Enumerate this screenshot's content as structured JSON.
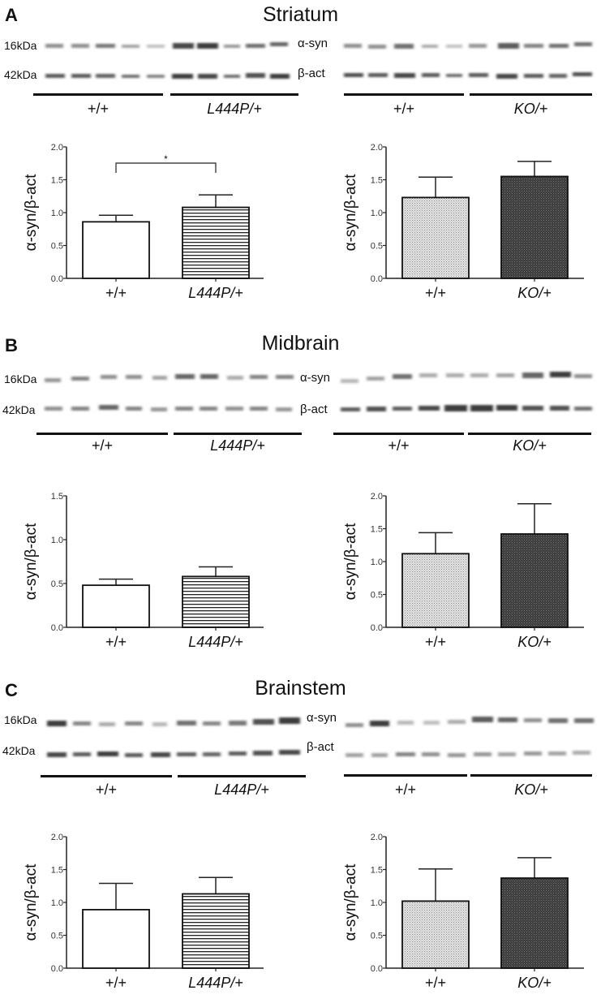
{
  "figure": {
    "panels": [
      {
        "letter": "A",
        "title": "Striatum",
        "mw_labels": [
          "16kDa",
          "42kDa"
        ],
        "band_labels": [
          "α-syn",
          "β-act"
        ],
        "blot_groups_left": [
          "+/+",
          "L444P/+"
        ],
        "blot_groups_right": [
          "+/+",
          "KO/+"
        ]
      },
      {
        "letter": "B",
        "title": "Midbrain",
        "mw_labels": [
          "16kDa",
          "42kDa"
        ],
        "band_labels": [
          "α-syn",
          "β-act"
        ],
        "blot_groups_left": [
          "+/+",
          "L444P/+"
        ],
        "blot_groups_right": [
          "+/+",
          "KO/+"
        ]
      },
      {
        "letter": "C",
        "title": "Brainstem",
        "mw_labels": [
          "16kDa",
          "42kDa"
        ],
        "band_labels": [
          "α-syn",
          "β-act"
        ],
        "blot_groups_left": [
          "+/+",
          "L444P/+"
        ],
        "blot_groups_right": [
          "+/+",
          "KO/+"
        ]
      }
    ]
  },
  "chart_data": [
    {
      "panel": "A",
      "region": "Striatum",
      "type": "bar",
      "categories": [
        "+/+",
        "L444P/+"
      ],
      "values": [
        0.86,
        1.08
      ],
      "errors_upper": [
        0.96,
        1.27
      ],
      "ylabel": "α-syn/β-act",
      "ylim": [
        0,
        2.0
      ],
      "yticks": [
        "0.0",
        "0.5",
        "1.0",
        "1.5",
        "2.0"
      ],
      "annotation": "*",
      "fills": [
        "white",
        "horizontal-lines"
      ]
    },
    {
      "panel": "A",
      "region": "Striatum",
      "type": "bar",
      "categories": [
        "+/+",
        "KO/+"
      ],
      "values": [
        1.23,
        1.55
      ],
      "errors_upper": [
        1.54,
        1.78
      ],
      "ylabel": "α-syn/β-act",
      "ylim": [
        0,
        2.0
      ],
      "yticks": [
        "0.0",
        "0.5",
        "1.0",
        "1.5",
        "2.0"
      ],
      "fills": [
        "light-dots",
        "dark-dots"
      ]
    },
    {
      "panel": "B",
      "region": "Midbrain",
      "type": "bar",
      "categories": [
        "+/+",
        "L444P/+"
      ],
      "values": [
        0.48,
        0.58
      ],
      "errors_upper": [
        0.55,
        0.69
      ],
      "ylabel": "α-syn/β-act",
      "ylim": [
        0,
        1.5
      ],
      "yticks": [
        "0.0",
        "0.5",
        "1.0",
        "1.5"
      ],
      "fills": [
        "white",
        "horizontal-lines"
      ]
    },
    {
      "panel": "B",
      "region": "Midbrain",
      "type": "bar",
      "categories": [
        "+/+",
        "KO/+"
      ],
      "values": [
        1.12,
        1.42
      ],
      "errors_upper": [
        1.44,
        1.88
      ],
      "ylabel": "α-syn/β-act",
      "ylim": [
        0,
        2.0
      ],
      "yticks": [
        "0.0",
        "0.5",
        "1.0",
        "1.5",
        "2.0"
      ],
      "fills": [
        "light-dots",
        "dark-dots"
      ]
    },
    {
      "panel": "C",
      "region": "Brainstem",
      "type": "bar",
      "categories": [
        "+/+",
        "L444P/+"
      ],
      "values": [
        0.89,
        1.13
      ],
      "errors_upper": [
        1.29,
        1.38
      ],
      "ylabel": "α-syn/β-act",
      "ylim": [
        0,
        2.0
      ],
      "yticks": [
        "0.0",
        "0.5",
        "1.0",
        "1.5",
        "2.0"
      ],
      "fills": [
        "white",
        "horizontal-lines"
      ]
    },
    {
      "panel": "C",
      "region": "Brainstem",
      "type": "bar",
      "categories": [
        "+/+",
        "KO/+"
      ],
      "values": [
        1.02,
        1.37
      ],
      "errors_upper": [
        1.51,
        1.68
      ],
      "ylabel": "α-syn/β-act",
      "ylim": [
        0,
        2.0
      ],
      "yticks": [
        "0.0",
        "0.5",
        "1.0",
        "1.5",
        "2.0"
      ],
      "fills": [
        "light-dots",
        "dark-dots"
      ]
    }
  ]
}
